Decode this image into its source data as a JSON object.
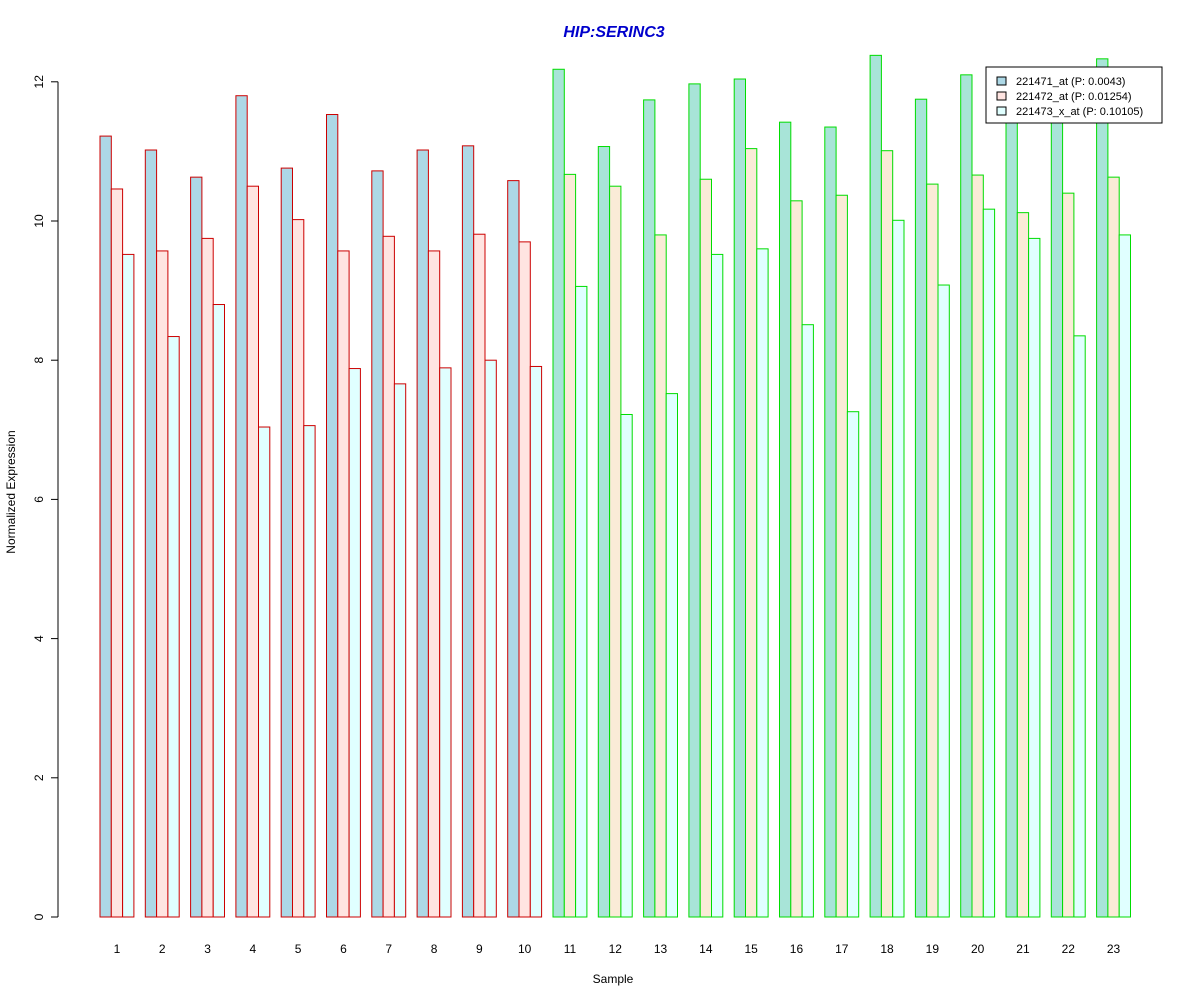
{
  "colors": {
    "title": "#0000cc",
    "group1_border": "#cc0000",
    "group2_border": "#00dd00",
    "group1_fills": [
      "#add8e6",
      "#ffe4e1",
      "#e0ffff"
    ],
    "group2_fills": [
      "#a8e4d8",
      "#faebd7",
      "#e0ffff"
    ]
  },
  "chart_data": {
    "type": "bar",
    "title": "HIP:SERINC3",
    "xlabel": "Sample",
    "ylabel": "Normalized Expression",
    "ylim": [
      0,
      12.4
    ],
    "yticks": [
      0,
      2,
      4,
      6,
      8,
      10,
      12
    ],
    "categories": [
      "1",
      "2",
      "3",
      "4",
      "5",
      "6",
      "7",
      "8",
      "9",
      "10",
      "11",
      "12",
      "13",
      "14",
      "15",
      "16",
      "17",
      "18",
      "19",
      "20",
      "21",
      "22",
      "23"
    ],
    "group1_count": 10,
    "legend_position": "top-right",
    "series": [
      {
        "name": "221471_at (P: 0.0043)",
        "values": [
          11.22,
          11.02,
          10.63,
          11.8,
          10.76,
          11.53,
          10.72,
          11.02,
          11.08,
          10.58,
          12.18,
          11.07,
          11.74,
          11.97,
          12.04,
          11.42,
          11.35,
          12.38,
          11.75,
          12.1,
          11.5,
          11.5,
          12.33
        ]
      },
      {
        "name": "221472_at (P: 0.01254)",
        "values": [
          10.46,
          9.57,
          9.75,
          10.5,
          10.02,
          9.57,
          9.78,
          9.57,
          9.81,
          9.7,
          10.67,
          10.5,
          9.8,
          10.6,
          11.04,
          10.29,
          10.37,
          11.01,
          10.53,
          10.66,
          10.12,
          10.4,
          10.63
        ]
      },
      {
        "name": "221473_x_at (P: 0.10105)",
        "values": [
          9.52,
          8.34,
          8.8,
          7.04,
          7.06,
          7.88,
          7.66,
          7.89,
          8.0,
          7.91,
          9.06,
          7.22,
          7.52,
          9.52,
          9.6,
          8.51,
          7.26,
          10.01,
          9.08,
          10.17,
          9.75,
          8.35,
          9.8
        ]
      }
    ]
  }
}
